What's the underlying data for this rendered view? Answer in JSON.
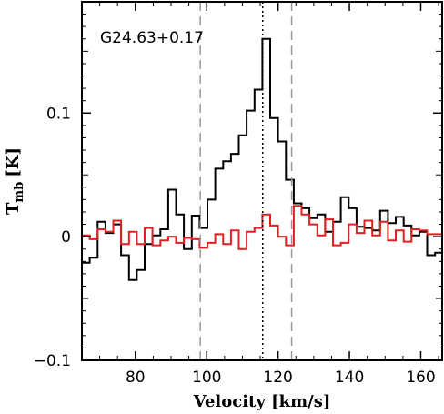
{
  "chart_data": {
    "type": "line",
    "step": true,
    "annotation": "G24.63+0.17",
    "xlabel": "Velocity [km/s]",
    "ylabel_main": "T",
    "ylabel_sub": "mb",
    "ylabel_unit": "[K]",
    "xlim": [
      65,
      166
    ],
    "ylim": [
      -0.1,
      0.19
    ],
    "xticks": [
      80,
      100,
      120,
      140,
      160
    ],
    "xtick_labels": [
      "80",
      "100",
      "120",
      "140",
      "160"
    ],
    "yticks": [
      -0.1,
      0,
      0.1
    ],
    "ytick_labels": [
      "−0.1",
      "0",
      "0.1"
    ],
    "grid": false,
    "vlines": [
      {
        "x": 98.2,
        "style": "dashed",
        "color": "#999999"
      },
      {
        "x": 115.7,
        "style": "dotted",
        "color": "#000000"
      },
      {
        "x": 123.8,
        "style": "dashed",
        "color": "#999999"
      }
    ],
    "series": [
      {
        "color": "#000000",
        "x": [
          65,
          67.2,
          69.4,
          71.6,
          73.8,
          76,
          78.2,
          80.4,
          82.6,
          84.8,
          87,
          89.2,
          91.4,
          93.6,
          95.8,
          98,
          100.2,
          102.4,
          104.6,
          106.8,
          109,
          111.2,
          113.4,
          115.6,
          117.8,
          120,
          122.2,
          124.4,
          126.6,
          128.8,
          131,
          133.2,
          135.4,
          137.6,
          139.8,
          142,
          144.2,
          146.4,
          148.6,
          150.8,
          153,
          155.2,
          157.4,
          159.6,
          161.8,
          164
        ],
        "values": [
          -0.021,
          -0.017,
          0.012,
          0.003,
          0.01,
          -0.015,
          -0.035,
          -0.027,
          -0.006,
          0.001,
          0.006,
          0.038,
          0.018,
          -0.01,
          0.017,
          0.007,
          0.03,
          0.055,
          0.061,
          0.067,
          0.082,
          0.102,
          0.119,
          0.16,
          0.096,
          0.077,
          0.046,
          0.027,
          0.023,
          0.015,
          0.018,
          0.004,
          0.012,
          0.032,
          0.023,
          0.008,
          0.007,
          0.005,
          0.021,
          0.011,
          0.016,
          0.009,
          0.001,
          0.004,
          -0.015,
          -0.013
        ]
      },
      {
        "color": "#e02020",
        "x": [
          65,
          67.2,
          69.4,
          71.6,
          73.8,
          76,
          78.2,
          80.4,
          82.6,
          84.8,
          87,
          89.2,
          91.4,
          93.6,
          95.8,
          98,
          100.2,
          102.4,
          104.6,
          106.8,
          109,
          111.2,
          113.4,
          115.6,
          117.8,
          120,
          122.2,
          124.4,
          126.6,
          128.8,
          131,
          133.2,
          135.4,
          137.6,
          139.8,
          142,
          144.2,
          146.4,
          148.6,
          150.8,
          153,
          155.2,
          157.4,
          159.6,
          161.8,
          164
        ],
        "values": [
          0.001,
          -0.002,
          0.006,
          0.004,
          0.013,
          -0.006,
          0.004,
          -0.006,
          0.007,
          -0.007,
          -0.003,
          0.0,
          -0.005,
          -0.001,
          -0.002,
          -0.009,
          -0.005,
          0.002,
          -0.006,
          0.005,
          -0.01,
          0.004,
          0.007,
          0.018,
          0.009,
          0.0,
          -0.007,
          0.025,
          0.018,
          0.01,
          0.001,
          0.014,
          -0.007,
          -0.005,
          0.01,
          0.003,
          0.013,
          0.001,
          0.012,
          -0.003,
          0.005,
          -0.004,
          0.006,
          0.005,
          0.002,
          0.002
        ]
      }
    ]
  }
}
